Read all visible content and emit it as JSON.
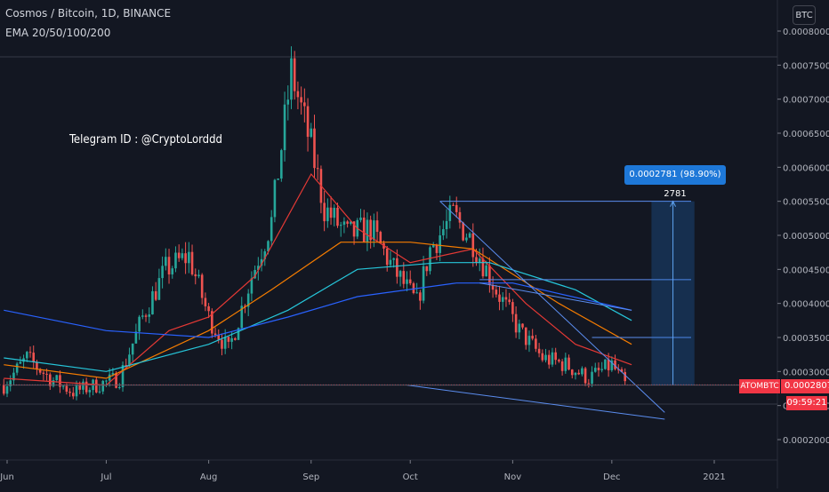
{
  "header": {
    "title": "Cosmos / Bitcoin, 1D, BINANCE",
    "indicator": "EMA 20/50/100/200",
    "axis_unit": "BTC"
  },
  "annotations": {
    "telegram": "Telegram ID : @CryptoLorddd",
    "measure_label": "0.0002781 (98.90%) 2781",
    "symbol_tag": "ATOMBTC",
    "last_price": "0.0002807",
    "countdown": "09:59:21"
  },
  "colors": {
    "background": "#131722",
    "bull": "#26a69a",
    "bear": "#ef5350",
    "ema20": "#e53935",
    "ema50": "#f57c00",
    "ema100": "#26c6da",
    "ema200": "#2962ff",
    "trendline": "#5b8def",
    "measure": "#1e78d8"
  },
  "chart_data": {
    "type": "candlestick",
    "y_axis": {
      "ylim": [
        0.00017,
        0.00082
      ],
      "ticks": [
        "0.0002000",
        "0.0002500",
        "0.0003000",
        "0.0003500",
        "0.0004000",
        "0.0004500",
        "0.0005000",
        "0.0005500",
        "0.0006000",
        "0.0006500",
        "0.0007000",
        "0.0007500",
        "0.0008000"
      ],
      "tick_values": [
        0.0002,
        0.00025,
        0.0003,
        0.00035,
        0.0004,
        0.00045,
        0.0005,
        0.00055,
        0.0006,
        0.00065,
        0.0007,
        0.00075,
        0.0008
      ]
    },
    "x_axis": {
      "labels": [
        "Jun",
        "Jul",
        "Aug",
        "Sep",
        "Oct",
        "Nov",
        "Dec",
        "2021"
      ],
      "label_dates": [
        "2020-06-01",
        "2020-07-01",
        "2020-08-01",
        "2020-09-01",
        "2020-10-01",
        "2020-11-01",
        "2020-12-01",
        "2021-01-01"
      ]
    },
    "close_path": [
      [
        "2020-05-31",
        0.00028
      ],
      [
        "2020-06-07",
        0.00032
      ],
      [
        "2020-06-14",
        0.00029
      ],
      [
        "2020-06-21",
        0.00027
      ],
      [
        "2020-06-28",
        0.00028
      ],
      [
        "2020-07-05",
        0.00029
      ],
      [
        "2020-07-12",
        0.00038
      ],
      [
        "2020-07-19",
        0.00045
      ],
      [
        "2020-07-26",
        0.00047
      ],
      [
        "2020-08-01",
        0.00038
      ],
      [
        "2020-08-07",
        0.00033
      ],
      [
        "2020-08-14",
        0.00044
      ],
      [
        "2020-08-20",
        0.00052
      ],
      [
        "2020-08-26",
        0.00074
      ],
      [
        "2020-09-01",
        0.00063
      ],
      [
        "2020-09-05",
        0.00054
      ],
      [
        "2020-09-12",
        0.0005
      ],
      [
        "2020-09-19",
        0.00051
      ],
      [
        "2020-09-26",
        0.00045
      ],
      [
        "2020-10-03",
        0.0004
      ],
      [
        "2020-10-07",
        0.00048
      ],
      [
        "2020-10-14",
        0.00053
      ],
      [
        "2020-10-20",
        0.00049
      ],
      [
        "2020-10-27",
        0.00042
      ],
      [
        "2020-11-03",
        0.00036
      ],
      [
        "2020-11-10",
        0.00032
      ],
      [
        "2020-11-17",
        0.00031
      ],
      [
        "2020-11-24",
        0.00029
      ],
      [
        "2020-12-01",
        0.00031
      ],
      [
        "2020-12-05",
        0.00028
      ]
    ],
    "ema_lines": [
      {
        "name": "EMA 20",
        "points": [
          [
            "2020-05-31",
            0.00029
          ],
          [
            "2020-07-01",
            0.00028
          ],
          [
            "2020-07-20",
            0.00036
          ],
          [
            "2020-08-01",
            0.00038
          ],
          [
            "2020-08-15",
            0.00044
          ],
          [
            "2020-09-01",
            0.00059
          ],
          [
            "2020-09-15",
            0.00051
          ],
          [
            "2020-10-01",
            0.00046
          ],
          [
            "2020-10-20",
            0.00048
          ],
          [
            "2020-11-05",
            0.0004
          ],
          [
            "2020-11-20",
            0.00034
          ],
          [
            "2020-12-07",
            0.00031
          ]
        ]
      },
      {
        "name": "EMA 50",
        "points": [
          [
            "2020-05-31",
            0.00031
          ],
          [
            "2020-07-01",
            0.00029
          ],
          [
            "2020-08-01",
            0.00036
          ],
          [
            "2020-08-20",
            0.00042
          ],
          [
            "2020-09-10",
            0.00049
          ],
          [
            "2020-10-01",
            0.00049
          ],
          [
            "2020-10-20",
            0.00048
          ],
          [
            "2020-11-15",
            0.0004
          ],
          [
            "2020-12-07",
            0.00034
          ]
        ]
      },
      {
        "name": "EMA 100",
        "points": [
          [
            "2020-05-31",
            0.00032
          ],
          [
            "2020-07-01",
            0.0003
          ],
          [
            "2020-08-01",
            0.00034
          ],
          [
            "2020-08-25",
            0.00039
          ],
          [
            "2020-09-15",
            0.00045
          ],
          [
            "2020-10-10",
            0.00046
          ],
          [
            "2020-10-25",
            0.00046
          ],
          [
            "2020-11-20",
            0.00042
          ],
          [
            "2020-12-07",
            0.000375
          ]
        ]
      },
      {
        "name": "EMA 200",
        "points": [
          [
            "2020-05-31",
            0.00039
          ],
          [
            "2020-07-01",
            0.00036
          ],
          [
            "2020-08-01",
            0.00035
          ],
          [
            "2020-08-25",
            0.00038
          ],
          [
            "2020-09-15",
            0.00041
          ],
          [
            "2020-10-15",
            0.00043
          ],
          [
            "2020-11-01",
            0.00043
          ],
          [
            "2020-12-07",
            0.00039
          ]
        ]
      }
    ],
    "trendlines": [
      {
        "from": [
          "2020-10-10",
          0.00055
        ],
        "to": [
          "2020-12-17",
          0.00024
        ]
      },
      {
        "from": [
          "2020-09-30",
          0.00028
        ],
        "to": [
          "2020-12-17",
          0.00023
        ]
      },
      {
        "from": [
          "2020-10-22",
          0.00043
        ],
        "to": [
          "2020-12-07",
          0.00039
        ]
      }
    ],
    "horizontal_levels": [
      {
        "from": "2020-10-10",
        "to": "2020-12-25",
        "value": 0.00055
      },
      {
        "from": "2020-10-22",
        "to": "2020-12-25",
        "value": 0.000435
      },
      {
        "from": "2020-11-25",
        "to": "2020-12-25",
        "value": 0.00035
      },
      {
        "from": "2020-05-31",
        "to": "2020-12-31",
        "value": 0.00028
      }
    ],
    "measure": {
      "from_date": "2020-12-13",
      "to_date": "2020-12-26",
      "low": 0.00028,
      "high": 0.00055,
      "change": "0.0002781 (98.90%) 2781"
    },
    "last_price": 0.0002807
  }
}
